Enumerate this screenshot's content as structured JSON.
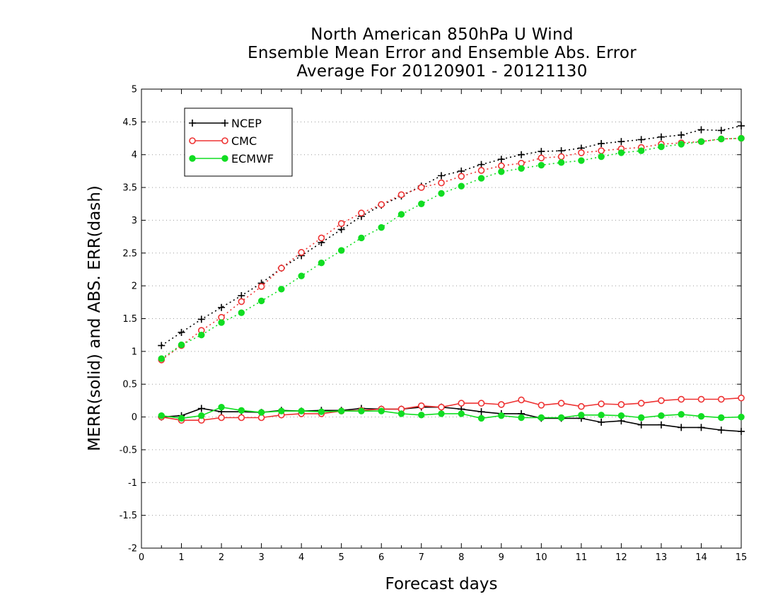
{
  "chart_data": {
    "type": "line",
    "title": [
      "North American 850hPa U Wind",
      "Ensemble Mean Error and Ensemble Abs. Error",
      "Average For 20120901 - 20121130"
    ],
    "xlabel": "Forecast days",
    "ylabel": "MERR(solid) and ABS. ERR(dash)",
    "xlim": [
      0,
      15
    ],
    "ylim": [
      -2,
      5
    ],
    "x_ticks": [
      0,
      1,
      2,
      3,
      4,
      5,
      6,
      7,
      8,
      9,
      10,
      11,
      12,
      13,
      14,
      15
    ],
    "y_ticks": [
      -2,
      -1.5,
      -1,
      -0.5,
      0,
      0.5,
      1,
      1.5,
      2,
      2.5,
      3,
      3.5,
      4,
      4.5,
      5
    ],
    "y_tick_labels": [
      "-2",
      "-1.5",
      "-1",
      "-0.5",
      "0",
      "0.5",
      "1",
      "1.5",
      "2",
      "2.5",
      "3",
      "3.5",
      "4",
      "4.5",
      "5"
    ],
    "grid": "horizontal dotted",
    "legend_position": "top-left",
    "x": [
      0.5,
      1,
      1.5,
      2,
      2.5,
      3,
      3.5,
      4,
      4.5,
      5,
      5.5,
      6,
      6.5,
      7,
      7.5,
      8,
      8.5,
      9,
      9.5,
      10,
      10.5,
      11,
      11.5,
      12,
      12.5,
      13,
      13.5,
      14,
      14.5,
      15
    ],
    "series": [
      {
        "name": "NCEP",
        "color": "#000000",
        "marker": "plus",
        "mean_error": [
          0.0,
          0.02,
          0.13,
          0.08,
          0.08,
          0.07,
          0.1,
          0.09,
          0.1,
          0.1,
          0.13,
          0.12,
          0.12,
          0.15,
          0.15,
          0.12,
          0.08,
          0.05,
          0.05,
          -0.02,
          -0.02,
          -0.02,
          -0.08,
          -0.06,
          -0.12,
          -0.12,
          -0.16,
          -0.16,
          -0.2,
          -0.22
        ],
        "abs_error": [
          1.09,
          1.29,
          1.49,
          1.67,
          1.85,
          2.04,
          2.27,
          2.46,
          2.66,
          2.86,
          3.06,
          3.23,
          3.37,
          3.52,
          3.68,
          3.75,
          3.85,
          3.93,
          4.0,
          4.05,
          4.06,
          4.1,
          4.17,
          4.2,
          4.23,
          4.27,
          4.3,
          4.38,
          4.37,
          4.44
        ]
      },
      {
        "name": "CMC",
        "color": "#ee3333",
        "marker": "open-circle",
        "mean_error": [
          0.0,
          -0.05,
          -0.05,
          -0.01,
          -0.01,
          -0.01,
          0.03,
          0.05,
          0.05,
          0.09,
          0.1,
          0.12,
          0.12,
          0.17,
          0.15,
          0.21,
          0.21,
          0.19,
          0.26,
          0.18,
          0.21,
          0.16,
          0.2,
          0.19,
          0.21,
          0.25,
          0.27,
          0.27,
          0.27,
          0.29
        ],
        "abs_error": [
          0.87,
          1.09,
          1.32,
          1.52,
          1.76,
          1.99,
          2.27,
          2.51,
          2.73,
          2.95,
          3.11,
          3.24,
          3.39,
          3.5,
          3.57,
          3.67,
          3.76,
          3.83,
          3.87,
          3.95,
          3.97,
          4.03,
          4.06,
          4.09,
          4.11,
          4.16,
          4.18,
          4.2,
          4.24,
          4.25
        ]
      },
      {
        "name": "ECMWF",
        "color": "#11dd22",
        "marker": "filled-circle",
        "mean_error": [
          0.02,
          -0.02,
          0.02,
          0.15,
          0.1,
          0.07,
          0.09,
          0.09,
          0.08,
          0.09,
          0.09,
          0.09,
          0.05,
          0.03,
          0.05,
          0.05,
          -0.02,
          0.02,
          -0.01,
          -0.01,
          -0.01,
          0.03,
          0.03,
          0.02,
          -0.01,
          0.02,
          0.04,
          0.01,
          -0.01,
          0.0
        ],
        "abs_error": [
          0.89,
          1.1,
          1.25,
          1.44,
          1.59,
          1.77,
          1.95,
          2.15,
          2.35,
          2.54,
          2.73,
          2.89,
          3.09,
          3.25,
          3.41,
          3.52,
          3.64,
          3.74,
          3.79,
          3.84,
          3.88,
          3.91,
          3.97,
          4.03,
          4.06,
          4.12,
          4.16,
          4.2,
          4.24,
          4.25
        ]
      }
    ]
  }
}
